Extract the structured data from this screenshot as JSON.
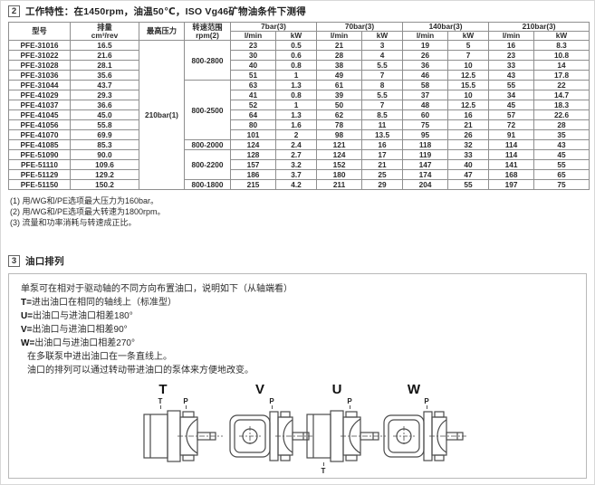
{
  "page": {
    "background": "#ffffff",
    "frame_border": "#d8d8d8",
    "table_border": "#8f8f8f",
    "text_color": "#222222"
  },
  "section2": {
    "number": "2",
    "title": "工作特性：在1450rpm，油温50℃，ISO Vg46矿物油条件下测得",
    "table": {
      "headers": {
        "model": "型号",
        "displacement_line1": "排量",
        "displacement_line2": "cm³/rev",
        "max_pressure": "最高压力",
        "speed_range_line1": "转速范围",
        "speed_range_line2": "rpm(2)",
        "pressure_groups": [
          "7bar(3)",
          "70bar(3)",
          "140bar(3)",
          "210bar(3)"
        ],
        "flow_unit": "l/min",
        "power_unit": "kW"
      },
      "max_pressure_value": "210bar(1)",
      "speed_ranges": [
        {
          "label": "800-2800",
          "rows": 4
        },
        {
          "label": "800-2500",
          "rows": 6
        },
        {
          "label": "800-2000",
          "rows": 1
        },
        {
          "label": "800-2200",
          "rows": 3
        },
        {
          "label": "800-1800",
          "rows": 1
        }
      ],
      "rows": [
        {
          "model": "PFE-31016",
          "disp": "16.5",
          "v": [
            "23",
            "0.5",
            "21",
            "3",
            "19",
            "5",
            "16",
            "8.3"
          ]
        },
        {
          "model": "PFE-31022",
          "disp": "21.6",
          "v": [
            "30",
            "0.6",
            "28",
            "4",
            "26",
            "7",
            "23",
            "10.8"
          ]
        },
        {
          "model": "PFE-31028",
          "disp": "28.1",
          "v": [
            "40",
            "0.8",
            "38",
            "5.5",
            "36",
            "10",
            "33",
            "14"
          ]
        },
        {
          "model": "PFE-31036",
          "disp": "35.6",
          "v": [
            "51",
            "1",
            "49",
            "7",
            "46",
            "12.5",
            "43",
            "17.8"
          ]
        },
        {
          "model": "PFE-31044",
          "disp": "43.7",
          "v": [
            "63",
            "1.3",
            "61",
            "8",
            "58",
            "15.5",
            "55",
            "22"
          ]
        },
        {
          "model": "PFE-41029",
          "disp": "29.3",
          "v": [
            "41",
            "0.8",
            "39",
            "5.5",
            "37",
            "10",
            "34",
            "14.7"
          ]
        },
        {
          "model": "PFE-41037",
          "disp": "36.6",
          "v": [
            "52",
            "1",
            "50",
            "7",
            "48",
            "12.5",
            "45",
            "18.3"
          ]
        },
        {
          "model": "PFE-41045",
          "disp": "45.0",
          "v": [
            "64",
            "1.3",
            "62",
            "8.5",
            "60",
            "16",
            "57",
            "22.6"
          ]
        },
        {
          "model": "PFE-41056",
          "disp": "55.8",
          "v": [
            "80",
            "1.6",
            "78",
            "11",
            "75",
            "21",
            "72",
            "28"
          ]
        },
        {
          "model": "PFE-41070",
          "disp": "69.9",
          "v": [
            "101",
            "2",
            "98",
            "13.5",
            "95",
            "26",
            "91",
            "35"
          ]
        },
        {
          "model": "PFE-41085",
          "disp": "85.3",
          "v": [
            "124",
            "2.4",
            "121",
            "16",
            "118",
            "32",
            "114",
            "43"
          ]
        },
        {
          "model": "PFE-51090",
          "disp": "90.0",
          "v": [
            "128",
            "2.7",
            "124",
            "17",
            "119",
            "33",
            "114",
            "45"
          ]
        },
        {
          "model": "PFE-51110",
          "disp": "109.6",
          "v": [
            "157",
            "3.2",
            "152",
            "21",
            "147",
            "40",
            "141",
            "55"
          ]
        },
        {
          "model": "PFE-51129",
          "disp": "129.2",
          "v": [
            "186",
            "3.7",
            "180",
            "25",
            "174",
            "47",
            "168",
            "65"
          ]
        },
        {
          "model": "PFE-51150",
          "disp": "150.2",
          "v": [
            "215",
            "4.2",
            "211",
            "29",
            "204",
            "55",
            "197",
            "75"
          ]
        }
      ]
    },
    "footnotes": [
      "(1) 用/WG和/PE选项最大压力为160bar。",
      "(2) 用/WG和/PE选项最大转速为1800rpm。",
      "(3) 流量和功率消耗与转速成正比。"
    ]
  },
  "section3": {
    "number": "3",
    "title": "油口排列",
    "intro": "单泵可在相对于驱动轴的不同方向布置油口，说明如下（从轴端看）",
    "port_lines": [
      {
        "label": "T=",
        "text": "进出油口在相同的轴线上（标准型）"
      },
      {
        "label": "U=",
        "text": "出油口与进油口相差180°"
      },
      {
        "label": "V=",
        "text": "出油口与进油口相差90°"
      },
      {
        "label": "W=",
        "text": "出油口与进油口相差270°"
      }
    ],
    "notes": [
      "在多联泵中进出油口在一条直线上。",
      "油口的排列可以通过转动带进油口的泵体来方便地改变。"
    ],
    "diagrams": [
      {
        "letter": "T",
        "ports": [
          {
            "label": "T"
          },
          {
            "label": "P"
          }
        ]
      },
      {
        "letter": "V",
        "ports": [
          {
            "label": "P"
          }
        ]
      },
      {
        "letter": "U",
        "ports": [
          {
            "label": "P"
          },
          {
            "label": "T"
          }
        ]
      },
      {
        "letter": "W",
        "ports": [
          {
            "label": "P"
          }
        ]
      }
    ]
  }
}
